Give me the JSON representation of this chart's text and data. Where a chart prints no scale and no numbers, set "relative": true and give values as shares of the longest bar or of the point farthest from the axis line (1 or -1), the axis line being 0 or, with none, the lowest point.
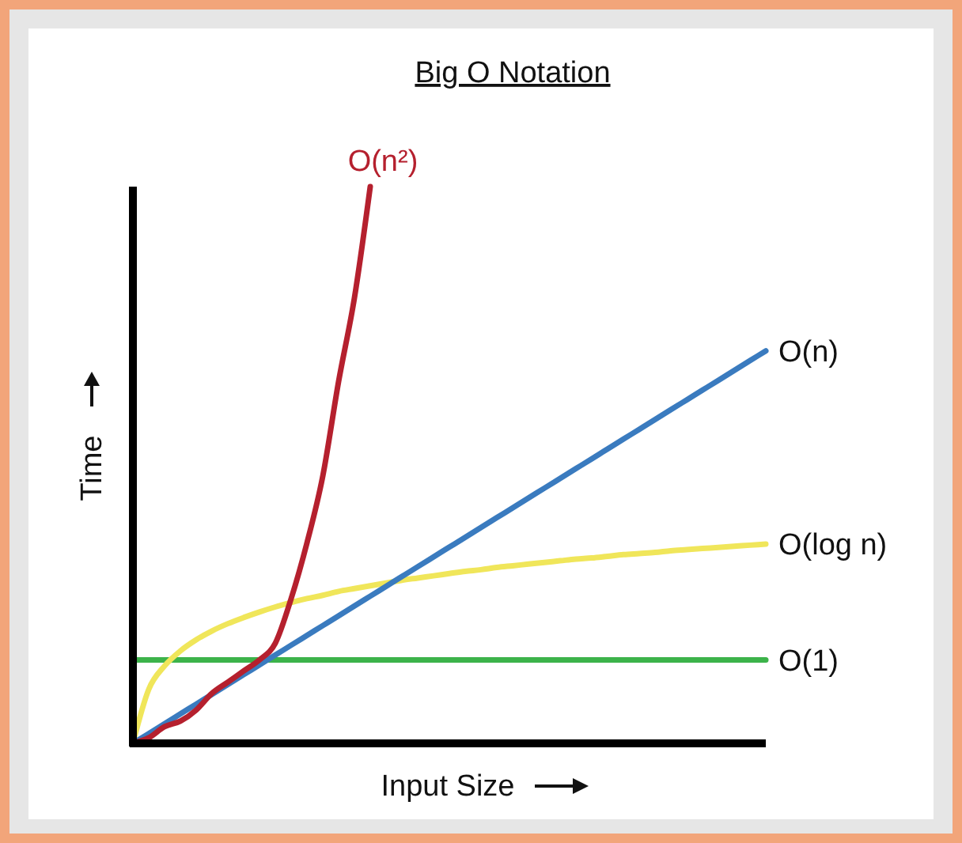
{
  "chart_data": {
    "type": "line",
    "title": "Big O Notation",
    "xlabel": "Input Size",
    "ylabel": "Time",
    "relative": true,
    "categories": [
      null,
      null,
      null,
      null,
      null,
      null,
      null,
      null,
      null,
      null,
      null,
      null,
      null,
      null,
      null,
      null,
      null,
      null,
      null,
      null,
      null,
      null,
      null,
      null,
      null,
      null,
      null,
      null,
      null,
      null,
      null,
      null,
      null,
      null,
      null,
      null,
      null,
      null,
      null,
      null,
      null
    ],
    "series": [
      {
        "name": "O(1)",
        "color": "#3cb34a",
        "values": [
          0.15,
          0.15,
          0.15,
          0.15,
          0.15,
          0.15,
          0.15,
          0.15,
          0.15,
          0.15,
          0.15,
          0.15,
          0.15,
          0.15,
          0.15,
          0.15,
          0.15,
          0.15,
          0.15,
          0.15,
          0.15,
          0.15,
          0.15,
          0.15,
          0.15,
          0.15,
          0.15,
          0.15,
          0.15,
          0.15,
          0.15,
          0.15,
          0.15,
          0.15,
          0.15,
          0.15,
          0.15,
          0.15,
          0.15,
          0.15,
          0.15
        ]
      },
      {
        "name": "O(log n)",
        "color": "#f0e65a",
        "values": [
          0,
          0.097,
          0.139,
          0.166,
          0.186,
          0.202,
          0.215,
          0.226,
          0.236,
          0.245,
          0.253,
          0.26,
          0.266,
          0.273,
          0.278,
          0.283,
          0.288,
          0.293,
          0.297,
          0.301,
          0.305,
          0.309,
          0.312,
          0.316,
          0.319,
          0.322,
          0.325,
          0.328,
          0.331,
          0.333,
          0.336,
          0.339,
          0.341,
          0.343,
          0.346,
          0.348,
          0.35,
          0.352,
          0.354,
          0.356,
          0.358
        ]
      },
      {
        "name": "O(n)",
        "color": "#3a7bbf",
        "values": [
          0,
          0.0176,
          0.0353,
          0.0529,
          0.0705,
          0.0881,
          0.1058,
          0.1234,
          0.141,
          0.1586,
          0.1763,
          0.1939,
          0.2115,
          0.2291,
          0.2468,
          0.2644,
          0.282,
          0.2996,
          0.3173,
          0.3349,
          0.3525,
          0.3701,
          0.3878,
          0.4054,
          0.423,
          0.4406,
          0.4583,
          0.4759,
          0.4935,
          0.5111,
          0.5288,
          0.5464,
          0.564,
          0.5816,
          0.5993,
          0.6169,
          0.6345,
          0.6521,
          0.6698,
          0.6874,
          0.705
        ]
      },
      {
        "name": "O(n²)",
        "color": "#b5202e",
        "values": [
          0,
          0.01,
          0.03,
          0.04,
          0.06,
          0.09,
          0.11,
          0.13,
          0.15,
          0.18,
          0.26,
          0.36,
          0.48,
          0.65,
          0.8,
          1,
          null,
          null,
          null,
          null,
          null,
          null,
          null,
          null,
          null,
          null,
          null,
          null,
          null,
          null,
          null,
          null,
          null,
          null,
          null,
          null,
          null,
          null,
          null,
          null,
          null
        ]
      }
    ]
  }
}
